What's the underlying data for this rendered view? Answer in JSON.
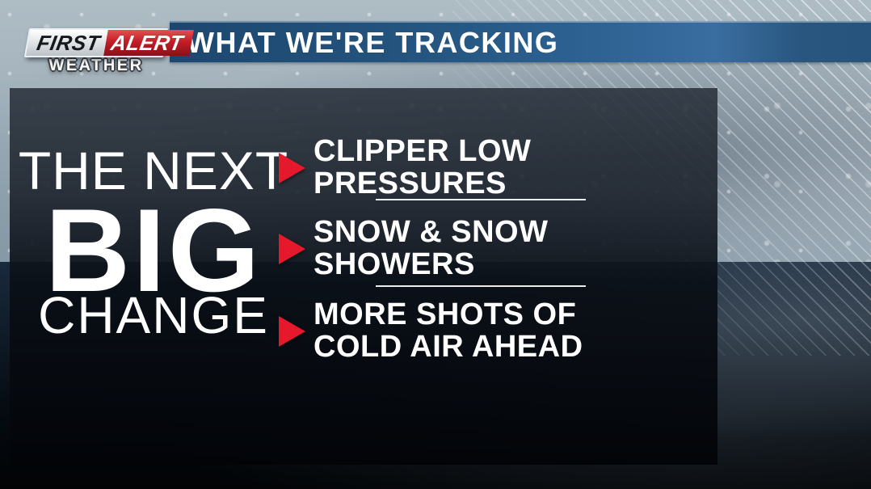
{
  "brand": {
    "first": "FIRST",
    "alert": "ALERT",
    "weather": "WEATHER"
  },
  "header": {
    "title": "WHAT WE'RE TRACKING"
  },
  "headline": {
    "line1": "THE NEXT",
    "line2": "BIG",
    "line3": "CHANGE"
  },
  "bullets": [
    {
      "lines": [
        "CLIPPER LOW",
        "PRESSURES"
      ]
    },
    {
      "lines": [
        "SNOW & SNOW",
        "SHOWERS"
      ]
    },
    {
      "lines": [
        "MORE SHOTS OF",
        "COLD AIR AHEAD"
      ]
    }
  ],
  "colors": {
    "bullet_red": "#e5192b",
    "bar_blue": "#2e6394",
    "logo_red": "#c31e28"
  }
}
